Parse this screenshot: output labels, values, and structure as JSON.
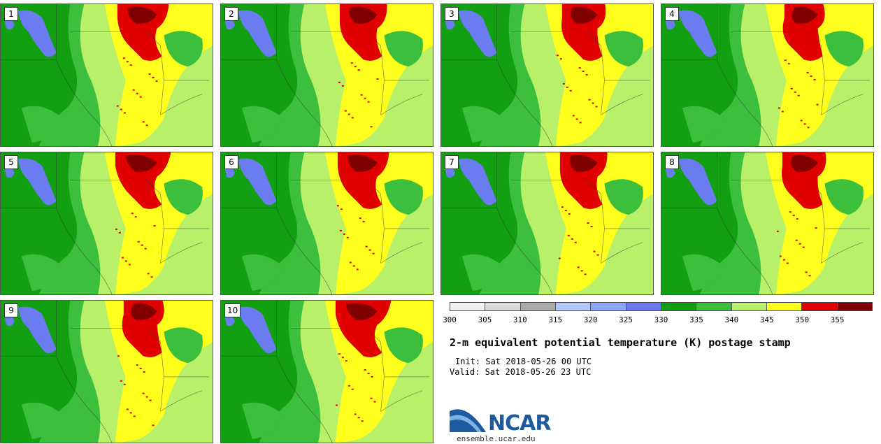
{
  "panels": [
    {
      "label": "1"
    },
    {
      "label": "2"
    },
    {
      "label": "3"
    },
    {
      "label": "4"
    },
    {
      "label": "5"
    },
    {
      "label": "6"
    },
    {
      "label": "7"
    },
    {
      "label": "8"
    },
    {
      "label": "9"
    },
    {
      "label": "10"
    }
  ],
  "colorbar": {
    "colors": [
      "#f0f0f0",
      "#d8d8d8",
      "#aaaaaa",
      "#b0c8ff",
      "#8aa6ff",
      "#6a7cf0",
      "#12a012",
      "#3cbf3c",
      "#b8f06a",
      "#ffff1e",
      "#e00000",
      "#800000"
    ],
    "ticks": [
      "300",
      "305",
      "310",
      "315",
      "320",
      "325",
      "330",
      "335",
      "340",
      "345",
      "350",
      "355"
    ]
  },
  "title": "2-m equivalent potential temperature (K) postage stamp",
  "init": "Init: Sat 2018-05-26 00 UTC",
  "valid": "Valid: Sat 2018-05-26 23 UTC",
  "logo": {
    "text": "NCAR",
    "site": "ensemble.ucar.edu"
  }
}
